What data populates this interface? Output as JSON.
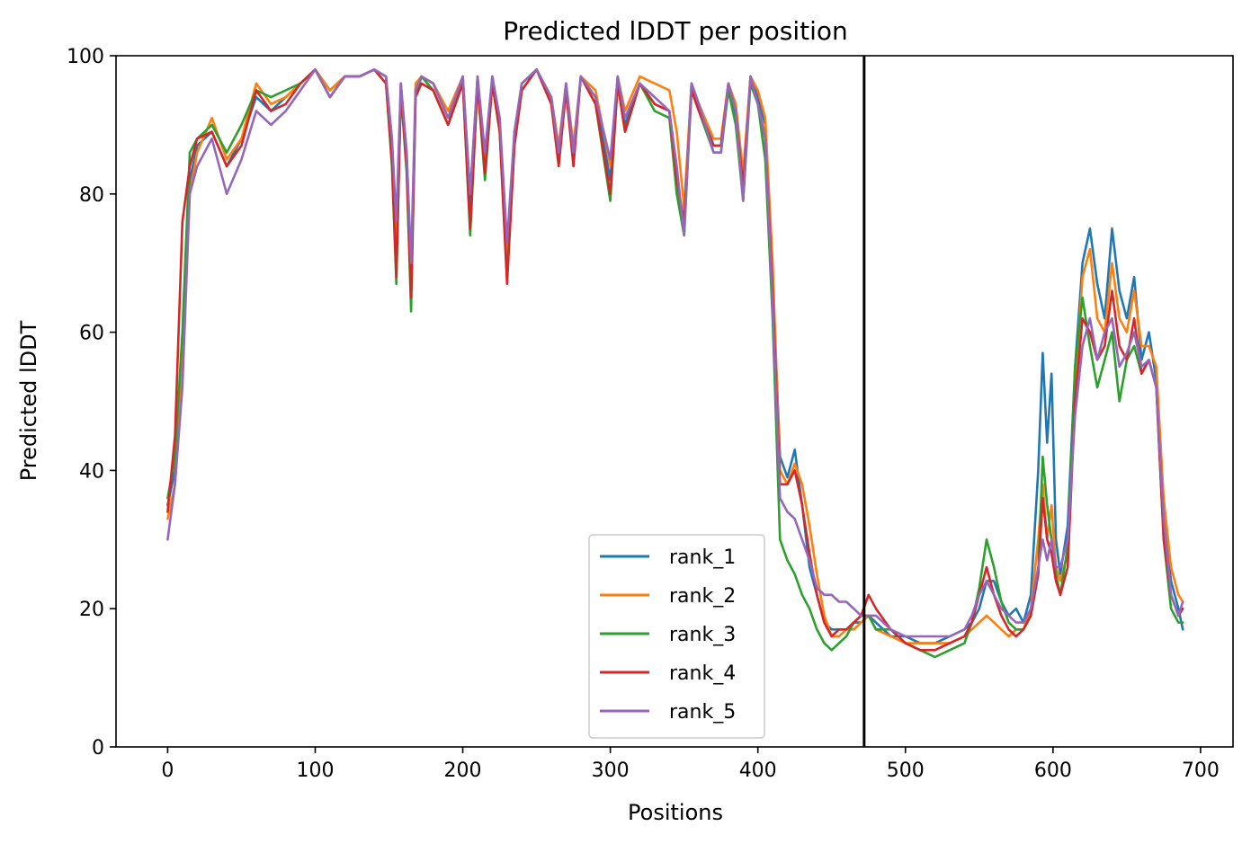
{
  "chart_data": {
    "type": "line",
    "title": "Predicted lDDT per position",
    "xlabel": "Positions",
    "ylabel": "Predicted lDDT",
    "xlim": [
      -35,
      722
    ],
    "ylim": [
      0,
      100
    ],
    "xticks": [
      0,
      100,
      200,
      300,
      400,
      500,
      600,
      700
    ],
    "yticks": [
      0,
      20,
      40,
      60,
      80,
      100
    ],
    "grid": false,
    "legend_position": "lower center",
    "vertical_line_x": 472,
    "colors": [
      "#1f77b4",
      "#ff7f0e",
      "#2ca02c",
      "#d62728",
      "#9467bd"
    ],
    "series": [
      {
        "name": "rank_1",
        "x": [
          0,
          5,
          10,
          15,
          20,
          30,
          40,
          50,
          60,
          70,
          80,
          90,
          100,
          110,
          120,
          130,
          140,
          148,
          152,
          155,
          158,
          162,
          165,
          168,
          172,
          180,
          190,
          200,
          205,
          210,
          215,
          220,
          225,
          230,
          235,
          240,
          250,
          260,
          265,
          270,
          275,
          280,
          290,
          300,
          305,
          310,
          320,
          330,
          340,
          345,
          350,
          355,
          360,
          370,
          375,
          380,
          385,
          390,
          395,
          400,
          405,
          410,
          415,
          420,
          425,
          430,
          435,
          440,
          445,
          450,
          455,
          460,
          465,
          470,
          475,
          480,
          490,
          500,
          510,
          520,
          530,
          540,
          545,
          550,
          555,
          560,
          565,
          570,
          575,
          580,
          585,
          590,
          593,
          596,
          599,
          602,
          605,
          610,
          615,
          620,
          625,
          630,
          635,
          640,
          645,
          650,
          655,
          660,
          665,
          670,
          675,
          680,
          685,
          688
        ],
        "y": [
          35,
          40,
          58,
          82,
          87,
          89,
          84,
          88,
          94,
          92,
          94,
          96,
          98,
          95,
          97,
          97,
          98,
          97,
          86,
          72,
          96,
          85,
          66,
          95,
          97,
          96,
          91,
          97,
          78,
          97,
          84,
          97,
          90,
          70,
          88,
          96,
          98,
          94,
          86,
          96,
          86,
          97,
          94,
          82,
          97,
          90,
          96,
          93,
          92,
          80,
          76,
          96,
          93,
          87,
          87,
          96,
          91,
          80,
          97,
          94,
          90,
          68,
          42,
          39,
          43,
          35,
          26,
          22,
          18,
          17,
          17,
          17,
          18,
          18,
          19,
          18,
          16,
          16,
          15,
          15,
          16,
          17,
          18,
          20,
          24,
          24,
          21,
          19,
          20,
          18,
          22,
          40,
          57,
          44,
          54,
          30,
          25,
          32,
          55,
          70,
          75,
          67,
          62,
          75,
          66,
          62,
          68,
          56,
          60,
          53,
          33,
          24,
          20,
          17
        ]
      },
      {
        "name": "rank_2",
        "x": [
          0,
          5,
          10,
          15,
          20,
          30,
          40,
          50,
          60,
          70,
          80,
          90,
          100,
          110,
          120,
          130,
          140,
          148,
          152,
          155,
          158,
          162,
          165,
          168,
          172,
          180,
          190,
          200,
          205,
          210,
          215,
          220,
          225,
          230,
          235,
          240,
          250,
          260,
          265,
          270,
          275,
          280,
          290,
          300,
          305,
          310,
          320,
          330,
          340,
          345,
          350,
          355,
          360,
          370,
          375,
          380,
          385,
          390,
          395,
          400,
          405,
          410,
          415,
          420,
          425,
          430,
          435,
          440,
          445,
          450,
          455,
          460,
          465,
          470,
          475,
          480,
          490,
          500,
          510,
          520,
          530,
          540,
          545,
          550,
          555,
          560,
          565,
          570,
          575,
          580,
          585,
          590,
          593,
          596,
          599,
          602,
          605,
          610,
          615,
          620,
          625,
          630,
          635,
          640,
          645,
          650,
          655,
          660,
          665,
          670,
          675,
          680,
          685,
          688
        ],
        "y": [
          33,
          38,
          55,
          80,
          86,
          91,
          85,
          88,
          96,
          93,
          94,
          96,
          98,
          95,
          97,
          97,
          98,
          97,
          88,
          74,
          96,
          86,
          68,
          96,
          97,
          96,
          92,
          97,
          80,
          97,
          85,
          97,
          91,
          71,
          89,
          96,
          98,
          94,
          87,
          96,
          87,
          97,
          95,
          84,
          97,
          92,
          97,
          96,
          95,
          89,
          78,
          96,
          93,
          88,
          88,
          96,
          93,
          83,
          97,
          95,
          91,
          70,
          40,
          38,
          41,
          38,
          32,
          25,
          19,
          16,
          16,
          17,
          17,
          18,
          19,
          17,
          16,
          15,
          15,
          15,
          15,
          16,
          17,
          18,
          19,
          18,
          17,
          16,
          17,
          17,
          20,
          30,
          38,
          30,
          35,
          26,
          24,
          28,
          52,
          68,
          72,
          62,
          60,
          70,
          62,
          60,
          66,
          58,
          58,
          55,
          36,
          26,
          22,
          21
        ]
      },
      {
        "name": "rank_3",
        "x": [
          0,
          5,
          10,
          15,
          20,
          30,
          40,
          50,
          60,
          70,
          80,
          90,
          100,
          110,
          120,
          130,
          140,
          148,
          152,
          155,
          158,
          162,
          165,
          168,
          172,
          180,
          190,
          200,
          205,
          210,
          215,
          220,
          225,
          230,
          235,
          240,
          250,
          260,
          265,
          270,
          275,
          280,
          290,
          300,
          305,
          310,
          320,
          330,
          340,
          345,
          350,
          355,
          360,
          370,
          375,
          380,
          385,
          390,
          395,
          400,
          405,
          410,
          415,
          420,
          425,
          430,
          435,
          440,
          445,
          450,
          455,
          460,
          465,
          470,
          475,
          480,
          490,
          500,
          510,
          520,
          530,
          540,
          545,
          550,
          555,
          560,
          565,
          570,
          575,
          580,
          585,
          590,
          593,
          596,
          599,
          602,
          605,
          610,
          615,
          620,
          625,
          630,
          635,
          640,
          645,
          650,
          655,
          660,
          665,
          670,
          675,
          680,
          685,
          688
        ],
        "y": [
          36,
          42,
          60,
          86,
          88,
          90,
          86,
          90,
          95,
          94,
          95,
          96,
          98,
          94,
          97,
          97,
          98,
          96,
          84,
          67,
          95,
          83,
          63,
          94,
          97,
          95,
          90,
          96,
          74,
          96,
          82,
          96,
          89,
          68,
          87,
          95,
          98,
          93,
          85,
          95,
          85,
          97,
          93,
          79,
          96,
          89,
          96,
          92,
          91,
          80,
          74,
          95,
          92,
          86,
          86,
          95,
          90,
          79,
          96,
          93,
          85,
          62,
          30,
          27,
          25,
          22,
          20,
          17,
          15,
          14,
          15,
          16,
          18,
          19,
          19,
          17,
          17,
          15,
          14,
          13,
          14,
          15,
          18,
          23,
          30,
          26,
          21,
          18,
          17,
          17,
          19,
          25,
          42,
          35,
          30,
          25,
          22,
          29,
          55,
          65,
          58,
          52,
          56,
          60,
          50,
          56,
          58,
          54,
          56,
          52,
          30,
          20,
          18,
          18
        ]
      },
      {
        "name": "rank_4",
        "x": [
          0,
          5,
          10,
          15,
          20,
          30,
          40,
          50,
          60,
          70,
          80,
          90,
          100,
          110,
          120,
          130,
          140,
          148,
          152,
          155,
          158,
          162,
          165,
          168,
          172,
          180,
          190,
          200,
          205,
          210,
          215,
          220,
          225,
          230,
          235,
          240,
          250,
          260,
          265,
          270,
          275,
          280,
          290,
          300,
          305,
          310,
          320,
          330,
          340,
          345,
          350,
          355,
          360,
          370,
          375,
          380,
          385,
          390,
          395,
          400,
          405,
          410,
          415,
          420,
          425,
          430,
          435,
          440,
          445,
          450,
          455,
          460,
          465,
          470,
          475,
          480,
          490,
          500,
          510,
          520,
          530,
          540,
          545,
          550,
          555,
          560,
          565,
          570,
          575,
          580,
          585,
          590,
          593,
          596,
          599,
          602,
          605,
          610,
          615,
          620,
          625,
          630,
          635,
          640,
          645,
          650,
          655,
          660,
          665,
          670,
          675,
          680,
          685,
          688
        ],
        "y": [
          34,
          45,
          76,
          84,
          88,
          89,
          84,
          87,
          95,
          92,
          93,
          96,
          98,
          94,
          97,
          97,
          98,
          96,
          85,
          68,
          95,
          84,
          65,
          94,
          96,
          95,
          90,
          96,
          75,
          96,
          83,
          96,
          89,
          67,
          87,
          95,
          98,
          93,
          84,
          95,
          84,
          97,
          93,
          80,
          96,
          89,
          96,
          93,
          92,
          82,
          76,
          95,
          92,
          87,
          87,
          96,
          92,
          81,
          97,
          93,
          88,
          66,
          38,
          38,
          40,
          35,
          28,
          22,
          18,
          16,
          17,
          17,
          18,
          19,
          22,
          20,
          17,
          15,
          14,
          14,
          15,
          16,
          18,
          22,
          26,
          22,
          19,
          17,
          16,
          17,
          19,
          25,
          36,
          30,
          28,
          24,
          22,
          26,
          50,
          62,
          60,
          56,
          58,
          66,
          58,
          56,
          62,
          54,
          56,
          52,
          30,
          22,
          19,
          20
        ]
      },
      {
        "name": "rank_5",
        "x": [
          0,
          5,
          10,
          15,
          20,
          30,
          40,
          50,
          60,
          70,
          80,
          90,
          100,
          110,
          120,
          130,
          140,
          148,
          152,
          155,
          158,
          162,
          165,
          168,
          172,
          180,
          190,
          200,
          205,
          210,
          215,
          220,
          225,
          230,
          235,
          240,
          250,
          260,
          265,
          270,
          275,
          280,
          290,
          300,
          305,
          310,
          320,
          330,
          340,
          345,
          350,
          355,
          360,
          370,
          375,
          380,
          385,
          390,
          395,
          400,
          405,
          410,
          415,
          420,
          425,
          430,
          435,
          440,
          445,
          450,
          455,
          460,
          465,
          470,
          475,
          480,
          490,
          500,
          510,
          520,
          530,
          540,
          545,
          550,
          555,
          560,
          565,
          570,
          575,
          580,
          585,
          590,
          593,
          596,
          599,
          602,
          605,
          610,
          615,
          620,
          625,
          630,
          635,
          640,
          645,
          650,
          655,
          660,
          665,
          670,
          675,
          680,
          685,
          688
        ],
        "y": [
          30,
          38,
          52,
          80,
          84,
          88,
          80,
          85,
          92,
          90,
          92,
          95,
          98,
          94,
          97,
          97,
          98,
          97,
          88,
          76,
          96,
          86,
          70,
          95,
          97,
          96,
          91,
          97,
          80,
          97,
          86,
          97,
          91,
          73,
          89,
          96,
          98,
          94,
          86,
          96,
          86,
          97,
          94,
          85,
          97,
          91,
          96,
          94,
          92,
          84,
          74,
          96,
          93,
          86,
          86,
          96,
          92,
          79,
          97,
          93,
          88,
          64,
          36,
          34,
          33,
          30,
          27,
          23,
          22,
          22,
          21,
          21,
          20,
          19,
          19,
          19,
          17,
          16,
          16,
          16,
          16,
          17,
          19,
          22,
          24,
          22,
          20,
          19,
          18,
          18,
          20,
          26,
          30,
          27,
          30,
          26,
          26,
          30,
          48,
          58,
          62,
          56,
          60,
          62,
          55,
          57,
          60,
          55,
          56,
          52,
          33,
          22,
          19,
          21
        ]
      }
    ]
  }
}
